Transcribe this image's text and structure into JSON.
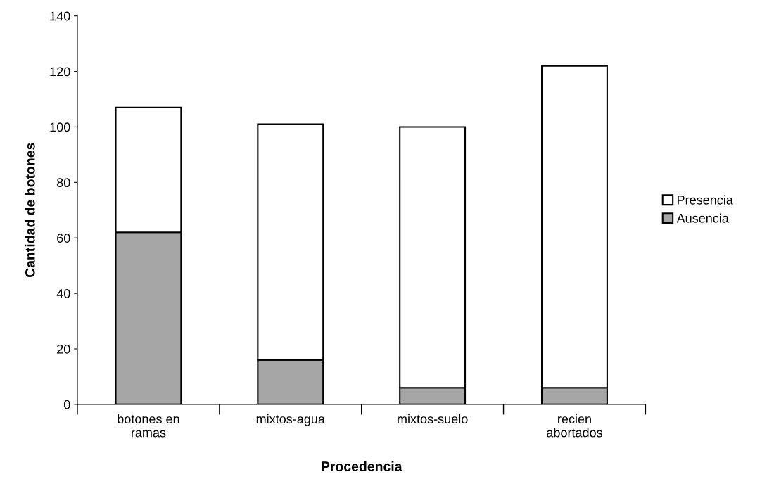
{
  "chart_data": {
    "type": "bar",
    "stacked": true,
    "xlabel": "Procedencia",
    "ylabel": "Cantidad de botones",
    "categories": [
      "botones en\nramas",
      "mixtos-agua",
      "mixtos-suelo",
      "recien\nabortados"
    ],
    "series": [
      {
        "name": "Ausencia",
        "color": "#a6a6a6",
        "values": [
          62,
          16,
          6,
          6
        ]
      },
      {
        "name": "Presencia",
        "color": "#ffffff",
        "values": [
          45,
          85,
          94,
          116
        ]
      }
    ],
    "ylim": [
      0,
      140
    ],
    "yticks": [
      0,
      20,
      40,
      60,
      80,
      100,
      120,
      140
    ],
    "grid": false,
    "legend": "right"
  }
}
